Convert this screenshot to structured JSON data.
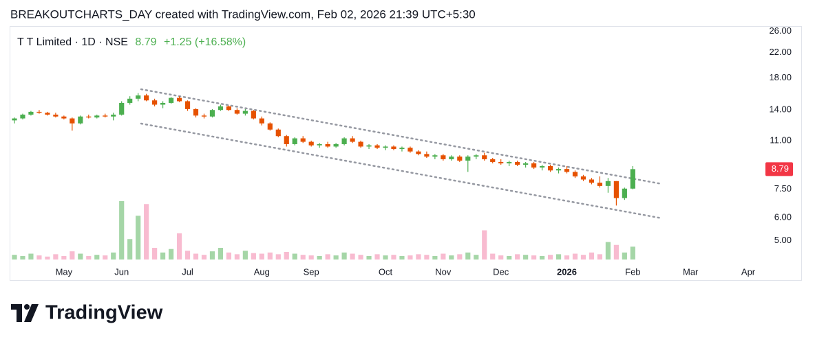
{
  "caption": "BREAKOUTCHARTS_DAY created with TradingView.com, Feb 02, 2026 21:39 UTC+5:30",
  "brand": "TradingView",
  "chart_data": {
    "type": "candlestick",
    "legend_title": "T T Limited · 1D · NSE",
    "legend_price": "8.79",
    "legend_change": "+1.25 (+16.58%)",
    "categories": [
      null,
      null,
      null,
      null,
      null,
      null,
      "May",
      null,
      null,
      null,
      null,
      null,
      null,
      "Jun",
      null,
      null,
      null,
      null,
      null,
      null,
      null,
      "Jul",
      null,
      null,
      null,
      null,
      null,
      null,
      null,
      null,
      "Aug",
      null,
      null,
      null,
      null,
      null,
      "Sep",
      null,
      null,
      null,
      null,
      null,
      null,
      null,
      null,
      "Oct",
      null,
      null,
      null,
      null,
      null,
      null,
      "Nov",
      null,
      null,
      null,
      null,
      null,
      null,
      "Dec",
      null,
      null,
      null,
      null,
      null,
      null,
      null,
      "2026",
      null,
      null,
      null,
      null,
      null,
      null,
      null,
      "Feb",
      null,
      null,
      null,
      null,
      null,
      null,
      "Mar",
      null,
      null,
      null,
      null,
      null,
      null,
      "Apr",
      null
    ],
    "open": [
      12.9,
      13.1,
      13.5,
      13.8,
      13.7,
      13.5,
      13.3,
      13.1,
      12.6,
      13.3,
      13.2,
      13.4,
      13.3,
      13.5,
      14.8,
      15.3,
      15.7,
      15.1,
      14.6,
      14.8,
      15.4,
      15.0,
      14.1,
      13.4,
      13.3,
      14.0,
      14.4,
      14.0,
      13.6,
      13.9,
      13.1,
      12.6,
      12.0,
      11.4,
      10.7,
      11.2,
      10.9,
      10.6,
      10.7,
      10.5,
      10.7,
      11.2,
      10.9,
      10.5,
      10.6,
      10.4,
      10.5,
      10.3,
      10.4,
      10.1,
      9.9,
      9.7,
      9.8,
      9.5,
      9.7,
      9.4,
      9.7,
      9.8,
      9.5,
      9.3,
      9.2,
      9.3,
      9.1,
      9.2,
      8.9,
      9.0,
      8.7,
      8.8,
      8.6,
      8.3,
      8.1,
      7.9,
      7.7,
      8.0,
      7.0,
      7.54,
      null,
      null,
      null,
      null,
      null,
      null,
      null,
      null,
      null,
      null,
      null,
      null,
      null,
      null,
      null
    ],
    "high": [
      13.2,
      13.6,
      13.9,
      14.0,
      13.8,
      13.7,
      13.4,
      13.2,
      13.4,
      13.5,
      13.5,
      13.6,
      13.7,
      15.0,
      15.6,
      16.0,
      15.9,
      15.3,
      15.0,
      15.5,
      15.6,
      15.1,
      14.2,
      13.6,
      14.1,
      14.6,
      14.5,
      14.2,
      14.1,
      14.0,
      13.3,
      12.7,
      12.1,
      11.5,
      11.3,
      11.4,
      11.0,
      10.8,
      10.9,
      10.8,
      11.3,
      11.4,
      11.0,
      10.7,
      10.7,
      10.6,
      10.6,
      10.5,
      10.5,
      10.2,
      10.1,
      9.9,
      9.9,
      9.8,
      9.8,
      9.8,
      9.9,
      10.0,
      9.6,
      9.5,
      9.4,
      9.4,
      9.3,
      9.3,
      9.1,
      9.1,
      8.9,
      9.0,
      8.7,
      8.4,
      8.2,
      8.3,
      8.2,
      8.0,
      7.6,
      9.0,
      null,
      null,
      null,
      null,
      null,
      null,
      null,
      null,
      null,
      null,
      null,
      null,
      null,
      null,
      null
    ],
    "low": [
      12.6,
      13.0,
      13.4,
      13.6,
      13.4,
      13.2,
      13.0,
      11.9,
      12.5,
      13.1,
      13.1,
      13.2,
      12.9,
      13.4,
      14.6,
      15.0,
      15.0,
      14.4,
      14.2,
      14.7,
      14.9,
      13.9,
      13.2,
      13.1,
      13.2,
      13.9,
      13.9,
      13.5,
      13.4,
      13.0,
      12.4,
      11.9,
      11.3,
      10.5,
      10.6,
      10.8,
      10.5,
      10.4,
      10.4,
      10.4,
      10.6,
      10.8,
      10.4,
      10.3,
      10.3,
      10.2,
      10.2,
      10.1,
      10.0,
      9.8,
      9.6,
      9.5,
      9.4,
      9.4,
      9.3,
      8.6,
      9.5,
      9.4,
      9.2,
      9.1,
      9.0,
      9.0,
      8.9,
      8.8,
      8.7,
      8.6,
      8.5,
      8.5,
      8.2,
      8.0,
      7.8,
      7.6,
      7.3,
      6.6,
      6.9,
      7.5,
      null,
      null,
      null,
      null,
      null,
      null,
      null,
      null,
      null,
      null,
      null,
      null,
      null,
      null,
      null
    ],
    "close": [
      13.1,
      13.5,
      13.8,
      13.7,
      13.5,
      13.3,
      13.1,
      12.6,
      13.3,
      13.2,
      13.4,
      13.3,
      13.5,
      14.8,
      15.3,
      15.7,
      15.1,
      14.6,
      14.8,
      15.4,
      15.0,
      14.1,
      13.4,
      13.3,
      14.0,
      14.4,
      14.0,
      13.6,
      13.9,
      13.1,
      12.6,
      12.0,
      11.4,
      10.7,
      11.2,
      10.9,
      10.6,
      10.7,
      10.5,
      10.7,
      11.2,
      10.9,
      10.5,
      10.6,
      10.4,
      10.5,
      10.3,
      10.4,
      10.1,
      9.9,
      9.7,
      9.8,
      9.5,
      9.7,
      9.4,
      9.7,
      9.8,
      9.5,
      9.3,
      9.2,
      9.3,
      9.1,
      9.2,
      8.9,
      9.0,
      8.7,
      8.8,
      8.6,
      8.3,
      8.1,
      7.9,
      7.7,
      8.0,
      7.0,
      7.54,
      8.79,
      null,
      null,
      null,
      null,
      null,
      null,
      null,
      null,
      null,
      null,
      null,
      null,
      null,
      null,
      null
    ],
    "volume": [
      8,
      6,
      10,
      7,
      5,
      9,
      6,
      14,
      10,
      6,
      8,
      7,
      12,
      100,
      35,
      75,
      95,
      20,
      12,
      18,
      45,
      15,
      10,
      8,
      14,
      20,
      12,
      9,
      15,
      11,
      10,
      12,
      9,
      13,
      10,
      8,
      7,
      6,
      9,
      7,
      12,
      10,
      8,
      6,
      9,
      7,
      8,
      6,
      7,
      9,
      8,
      6,
      10,
      7,
      9,
      12,
      8,
      50,
      10,
      7,
      6,
      9,
      8,
      7,
      6,
      8,
      9,
      7,
      10,
      8,
      12,
      9,
      30,
      25,
      12,
      22,
      null,
      null,
      null,
      null,
      null,
      null,
      null,
      null,
      null,
      null,
      null,
      null,
      null,
      null,
      null
    ],
    "up_color": "#4caf50",
    "down_color": "#e65100",
    "volume_up_color": "#a5d6a7",
    "volume_down_color": "#f8bbd0",
    "last_price_color": "#f23645",
    "log_scale": true,
    "ylim": [
      3.67,
      27.1
    ],
    "yticks": [
      {
        "value": 26,
        "label": "26.00"
      },
      {
        "value": 22,
        "label": "22.00"
      },
      {
        "value": 18,
        "label": "18.00"
      },
      {
        "value": 14,
        "label": "14.00"
      },
      {
        "value": 11,
        "label": "11.00"
      },
      {
        "value": 7.5,
        "label": "7.50"
      },
      {
        "value": 6,
        "label": "6.00"
      },
      {
        "value": 5,
        "label": "5.00"
      }
    ]
  }
}
